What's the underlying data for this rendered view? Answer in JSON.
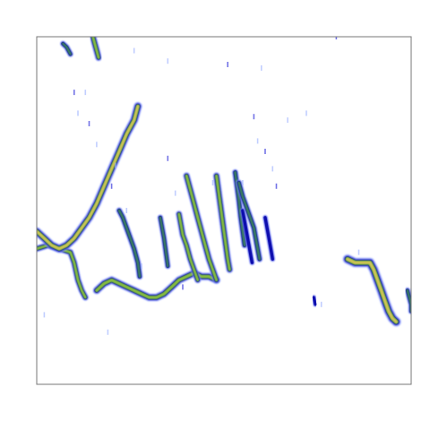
{
  "chart_data": {
    "type": "heatmap",
    "title": "",
    "xlabel": "",
    "ylabel": "",
    "xlim": [
      0,
      100
    ],
    "ylim": [
      0,
      100
    ],
    "grid": false,
    "legend": "none",
    "colorscale": [
      "#ffffff",
      "#9fb3ff",
      "#2a2ad8",
      "#0000a0",
      "#3f8a55",
      "#8ec23a",
      "#d9c35a"
    ],
    "value_range": [
      0,
      1
    ],
    "tracks": [
      {
        "name": "",
        "intensity": 0.55,
        "points": [
          [
            0,
            39
          ],
          [
            3,
            40
          ],
          [
            6,
            39
          ],
          [
            9,
            38
          ],
          [
            10,
            35
          ],
          [
            11,
            30
          ],
          [
            12,
            27
          ],
          [
            13,
            25
          ]
        ]
      },
      {
        "name": "",
        "intensity": 0.8,
        "points": [
          [
            0,
            44
          ],
          [
            2,
            42
          ],
          [
            4,
            40
          ],
          [
            6,
            39
          ],
          [
            8,
            40
          ],
          [
            10,
            42
          ],
          [
            12,
            45
          ],
          [
            14,
            48
          ],
          [
            16,
            52
          ],
          [
            18,
            57
          ],
          [
            20,
            62
          ],
          [
            22,
            67
          ],
          [
            24,
            72
          ],
          [
            26,
            76
          ],
          [
            27,
            80
          ]
        ]
      },
      {
        "name": "",
        "intensity": 0.7,
        "points": [
          [
            16,
            27
          ],
          [
            18,
            29
          ],
          [
            20,
            30
          ],
          [
            22,
            29
          ],
          [
            24,
            28
          ],
          [
            26,
            27
          ],
          [
            28,
            26
          ],
          [
            30,
            25
          ],
          [
            32,
            25
          ],
          [
            34,
            26
          ],
          [
            36,
            28
          ],
          [
            38,
            30
          ],
          [
            40,
            31
          ],
          [
            42,
            32
          ],
          [
            44,
            31
          ],
          [
            46,
            31
          ],
          [
            48,
            30
          ]
        ]
      },
      {
        "name": "",
        "intensity": 0.5,
        "points": [
          [
            22,
            50
          ],
          [
            23,
            48
          ],
          [
            24,
            45
          ],
          [
            25,
            42
          ],
          [
            26,
            39
          ],
          [
            27,
            35
          ],
          [
            27.5,
            31
          ]
        ]
      },
      {
        "name": "",
        "intensity": 0.45,
        "points": [
          [
            33,
            48
          ],
          [
            33.5,
            45
          ],
          [
            34,
            42
          ],
          [
            34.5,
            38
          ],
          [
            35,
            34
          ]
        ]
      },
      {
        "name": "",
        "intensity": 0.55,
        "points": [
          [
            38,
            49
          ],
          [
            38.5,
            46
          ],
          [
            39,
            43
          ],
          [
            40,
            40
          ],
          [
            41,
            36
          ],
          [
            42,
            33
          ],
          [
            43,
            30
          ]
        ]
      },
      {
        "name": "",
        "intensity": 0.6,
        "points": [
          [
            40,
            60
          ],
          [
            41,
            56
          ],
          [
            42,
            52
          ],
          [
            43,
            48
          ],
          [
            44,
            44
          ],
          [
            45,
            40
          ],
          [
            46,
            36
          ],
          [
            47,
            33
          ],
          [
            48,
            30
          ]
        ]
      },
      {
        "name": "",
        "intensity": 0.6,
        "points": [
          [
            48,
            60
          ],
          [
            48.5,
            56
          ],
          [
            49,
            52
          ],
          [
            49.5,
            48
          ],
          [
            50,
            44
          ],
          [
            50.5,
            40
          ],
          [
            51,
            36
          ],
          [
            51.5,
            33
          ]
        ]
      },
      {
        "name": "",
        "intensity": 0.5,
        "points": [
          [
            53,
            61
          ],
          [
            53.5,
            57
          ],
          [
            54,
            53
          ],
          [
            54.5,
            48
          ],
          [
            55,
            44
          ],
          [
            55.5,
            40
          ]
        ]
      },
      {
        "name": "",
        "intensity": 0.35,
        "points": [
          [
            55,
            50
          ],
          [
            55.5,
            47
          ],
          [
            56,
            44
          ],
          [
            56.5,
            41
          ],
          [
            57,
            38
          ],
          [
            57.5,
            35
          ]
        ]
      },
      {
        "name": "",
        "intensity": 0.5,
        "points": [
          [
            54,
            58
          ],
          [
            55,
            54
          ],
          [
            56,
            51
          ],
          [
            57,
            48
          ],
          [
            58,
            45
          ],
          [
            58.5,
            42
          ],
          [
            59,
            39
          ],
          [
            59.5,
            36
          ]
        ]
      },
      {
        "name": "",
        "intensity": 0.35,
        "points": [
          [
            61,
            48
          ],
          [
            61.5,
            45
          ],
          [
            62,
            42
          ],
          [
            62.5,
            39
          ],
          [
            63,
            36
          ]
        ]
      },
      {
        "name": "",
        "intensity": 0.95,
        "points": [
          [
            83,
            36
          ],
          [
            85,
            35
          ],
          [
            87,
            35
          ],
          [
            89,
            35
          ],
          [
            90,
            33
          ],
          [
            91,
            30
          ],
          [
            92,
            27
          ],
          [
            93,
            24
          ],
          [
            94,
            21
          ],
          [
            95,
            19
          ],
          [
            96,
            18
          ]
        ]
      },
      {
        "name": "",
        "intensity": 0.45,
        "points": [
          [
            99,
            27
          ],
          [
            99.5,
            25
          ],
          [
            100,
            23
          ],
          [
            100,
            21
          ]
        ]
      },
      {
        "name": "",
        "intensity": 0.45,
        "points": [
          [
            7,
            98
          ],
          [
            8,
            97
          ],
          [
            8.5,
            96
          ],
          [
            9,
            95
          ]
        ]
      },
      {
        "name": "",
        "intensity": 0.6,
        "points": [
          [
            15,
            100
          ],
          [
            15.5,
            98
          ],
          [
            16,
            96
          ],
          [
            16.5,
            94
          ]
        ]
      },
      {
        "name": "",
        "intensity": 0.3,
        "points": [
          [
            74,
            25
          ],
          [
            74.2,
            24
          ],
          [
            74.4,
            23
          ]
        ]
      }
    ],
    "specks": [
      [
        10,
        84
      ],
      [
        13,
        84
      ],
      [
        11,
        78
      ],
      [
        14,
        75
      ],
      [
        16,
        69
      ],
      [
        21,
        63
      ],
      [
        20,
        57
      ],
      [
        24,
        50
      ],
      [
        37,
        55
      ],
      [
        35,
        65
      ],
      [
        47,
        58
      ],
      [
        55,
        58
      ],
      [
        64,
        57
      ],
      [
        72,
        78
      ],
      [
        60,
        91
      ],
      [
        51,
        92
      ],
      [
        35,
        93
      ],
      [
        26,
        96
      ],
      [
        58,
        77
      ],
      [
        67,
        76
      ],
      [
        59,
        70
      ],
      [
        61,
        67
      ],
      [
        63,
        62
      ],
      [
        28,
        34
      ],
      [
        39,
        28
      ],
      [
        19,
        15
      ],
      [
        2,
        20
      ],
      [
        80,
        100
      ],
      [
        76,
        23
      ],
      [
        86,
        38
      ]
    ]
  }
}
